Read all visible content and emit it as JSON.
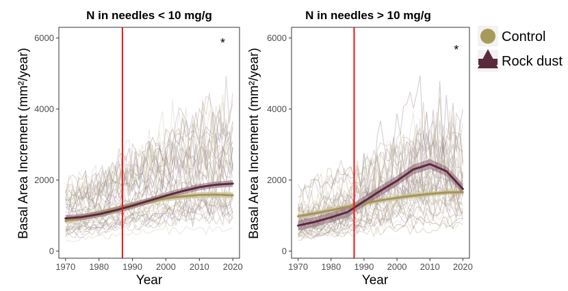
{
  "chart_data": [
    {
      "type": "line",
      "title": "N in needles < 10 mg/g",
      "xlabel": "Year",
      "ylabel": "Basal Area Increment (mm²/year)",
      "xlim": [
        1968,
        2022
      ],
      "ylim": [
        -200,
        6300
      ],
      "xticks": [
        1970,
        1980,
        1990,
        2000,
        2010,
        2020
      ],
      "yticks": [
        0,
        2000,
        4000,
        6000
      ],
      "vline_year": 1987,
      "annotation": "*",
      "annotation_x": 2017,
      "annotation_y": 5900,
      "series": [
        {
          "name": "Control",
          "x": [
            1970,
            1975,
            1980,
            1985,
            1990,
            1995,
            2000,
            2005,
            2010,
            2015,
            2020
          ],
          "values": [
            850,
            950,
            1060,
            1180,
            1300,
            1400,
            1480,
            1540,
            1580,
            1590,
            1570
          ],
          "ci": 80
        },
        {
          "name": "Rock dust",
          "x": [
            1970,
            1975,
            1980,
            1985,
            1990,
            1995,
            2000,
            2005,
            2010,
            2015,
            2020
          ],
          "values": [
            920,
            960,
            1040,
            1150,
            1280,
            1420,
            1560,
            1690,
            1800,
            1870,
            1900
          ],
          "ci": 90
        }
      ]
    },
    {
      "type": "line",
      "title": "N in needles > 10 mg/g",
      "xlabel": "Year",
      "ylabel": "Basal Area Increment (mm²/year)",
      "xlim": [
        1968,
        2022
      ],
      "ylim": [
        -200,
        6300
      ],
      "xticks": [
        1970,
        1980,
        1990,
        2000,
        2010,
        2020
      ],
      "yticks": [
        0,
        2000,
        4000,
        6000
      ],
      "vline_year": 1987,
      "annotation": "*",
      "annotation_x": 2018,
      "annotation_y": 5700,
      "series": [
        {
          "name": "Control",
          "x": [
            1970,
            1975,
            1980,
            1985,
            1990,
            1995,
            2000,
            2005,
            2010,
            2015,
            2020
          ],
          "values": [
            980,
            1060,
            1150,
            1250,
            1340,
            1430,
            1500,
            1560,
            1610,
            1650,
            1660
          ],
          "ci": 70
        },
        {
          "name": "Rock dust",
          "x": [
            1970,
            1975,
            1980,
            1985,
            1990,
            1995,
            2000,
            2005,
            2010,
            2015,
            2020
          ],
          "values": [
            720,
            820,
            950,
            1100,
            1400,
            1700,
            1980,
            2300,
            2450,
            2250,
            1750
          ],
          "ci": 140
        }
      ]
    }
  ],
  "legend": {
    "items": [
      {
        "label": "Control",
        "color": "#a89a5a",
        "marker": "circle"
      },
      {
        "label": "Rock dust",
        "color": "#5a2a3c",
        "marker": "triangle"
      }
    ]
  },
  "colors": {
    "control": "#a89a5a",
    "rock_dust": "#5a2a3c",
    "vline": "#ee1111"
  }
}
